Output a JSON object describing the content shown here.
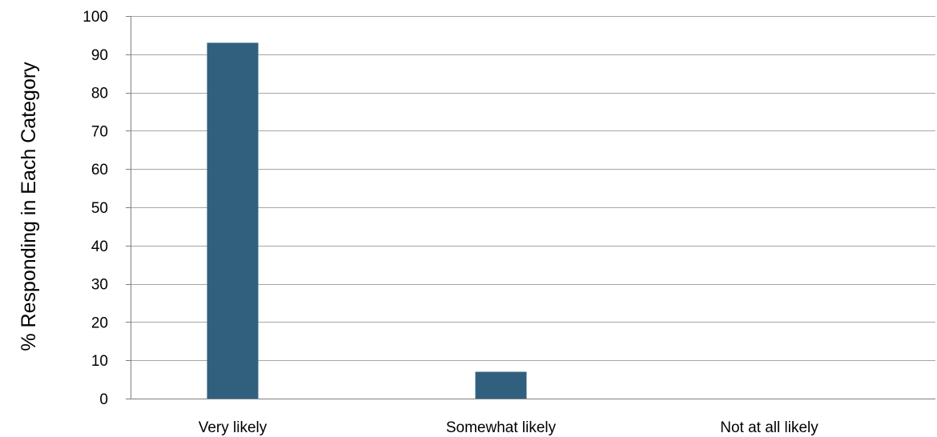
{
  "chart_data": {
    "type": "bar",
    "title": "",
    "xlabel": "",
    "ylabel": "% Responding in Each Category",
    "categories": [
      "Very likely",
      "Somewhat likely",
      "Not at all likely"
    ],
    "values": [
      93,
      7,
      0
    ],
    "ylim": [
      0,
      100
    ],
    "yticks": [
      0,
      10,
      20,
      30,
      40,
      50,
      60,
      70,
      80,
      90,
      100
    ],
    "grid": true,
    "legend": "none",
    "bar_color": "#31607f",
    "grid_color": "#a6a6a6",
    "axis_color": "#7f7f7f"
  }
}
